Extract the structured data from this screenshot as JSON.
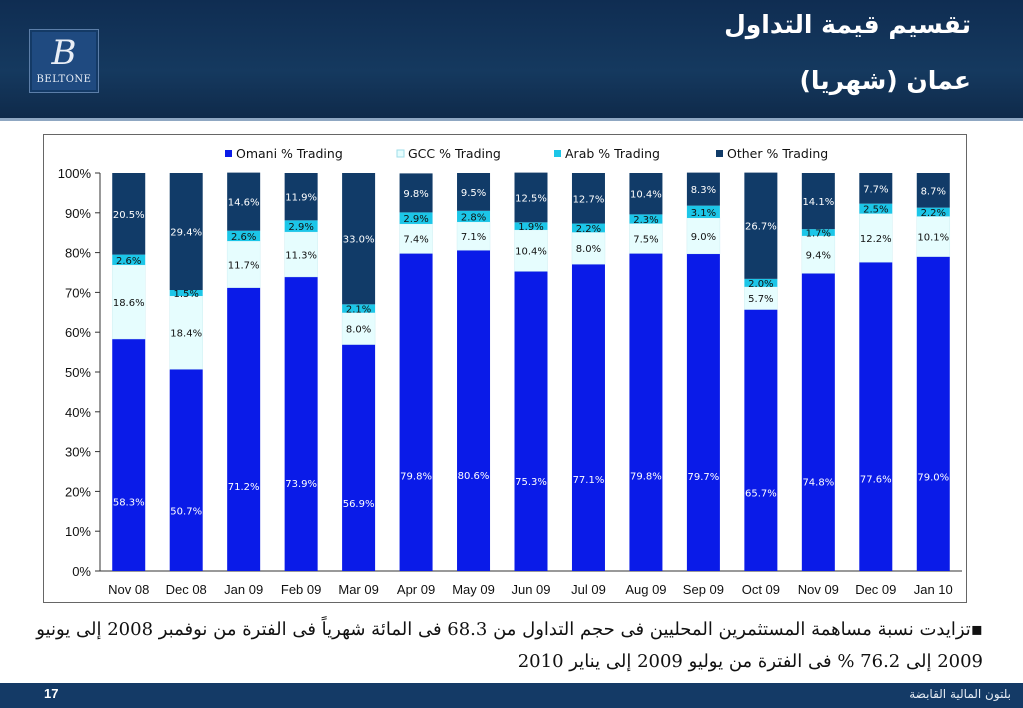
{
  "header": {
    "title_line1": "تقسيم قيمة التداول",
    "title_line2": "عمان (شهريا)",
    "logo_mark": "B",
    "logo_text": "BELTONE"
  },
  "colors": {
    "omani": "#0a1be8",
    "gcc": "#e6fdfe",
    "arab": "#1cc6e8",
    "other": "#113b68",
    "header": "#15395f",
    "footer": "#143a66"
  },
  "chart_data": {
    "type": "bar",
    "stacked": true,
    "categories": [
      "Nov 08",
      "Dec 08",
      "Jan 09",
      "Feb 09",
      "Mar 09",
      "Apr 09",
      "May 09",
      "Jun 09",
      "Jul 09",
      "Aug 09",
      "Sep 09",
      "Oct 09",
      "Nov 09",
      "Dec 09",
      "Jan 10"
    ],
    "series": [
      {
        "name": "Omani % Trading",
        "values": [
          58.3,
          50.7,
          71.2,
          73.9,
          56.9,
          79.8,
          80.6,
          75.3,
          77.1,
          79.8,
          79.7,
          65.7,
          74.8,
          77.6,
          79.0
        ]
      },
      {
        "name": "GCC % Trading",
        "values": [
          18.6,
          18.4,
          11.7,
          11.3,
          8.0,
          7.4,
          7.1,
          10.4,
          8.0,
          7.5,
          9.0,
          5.7,
          9.4,
          12.2,
          10.1
        ]
      },
      {
        "name": "Arab % Trading",
        "values": [
          2.6,
          1.5,
          2.6,
          2.9,
          2.1,
          2.9,
          2.8,
          1.9,
          2.2,
          2.3,
          3.1,
          2.0,
          1.7,
          2.5,
          2.2
        ]
      },
      {
        "name": "Other % Trading",
        "values": [
          20.5,
          29.4,
          14.6,
          11.9,
          33.0,
          9.8,
          9.5,
          12.5,
          12.7,
          10.4,
          8.3,
          26.7,
          14.1,
          7.7,
          8.7
        ]
      }
    ],
    "yticks": [
      "0%",
      "10%",
      "20%",
      "30%",
      "40%",
      "50%",
      "60%",
      "70%",
      "80%",
      "90%",
      "100%"
    ],
    "ylim": [
      0,
      100
    ],
    "legend_position": "top",
    "grid": false
  },
  "note": {
    "bullet": "▪",
    "text": "تزايدت نسبة مساهمة المستثمرين المحليين فى حجم التداول من 68.3 فى المائة شهرياً فى الفترة من نوفمبر 2008 إلى يونيو 2009 إلى 76.2 % فى الفترة من يوليو 2009 إلى يناير 2010"
  },
  "footer": {
    "page_number": "17",
    "company": "بلتون المالية القابضة"
  }
}
